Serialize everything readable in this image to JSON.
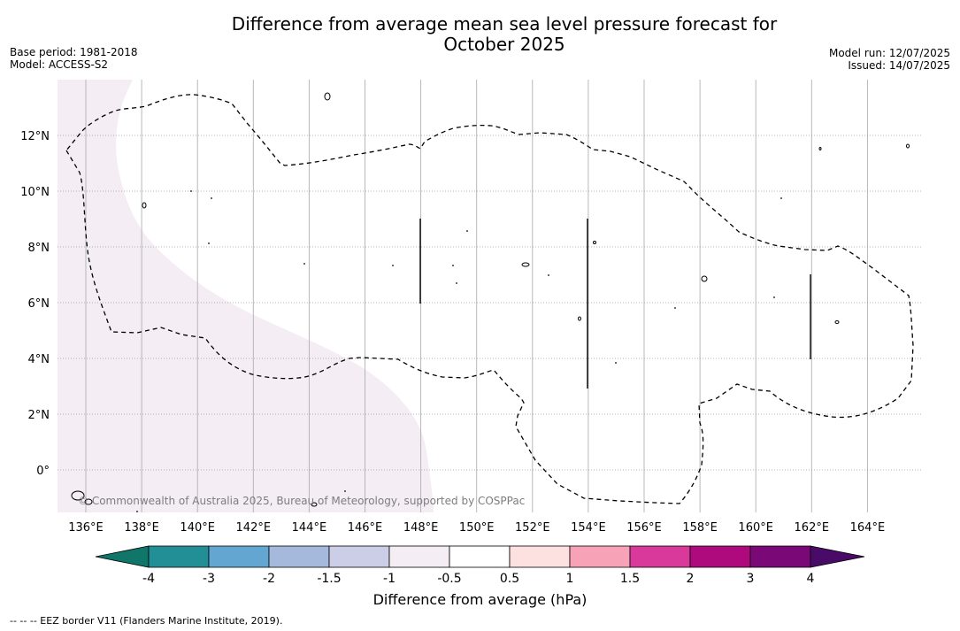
{
  "title": {
    "line1": "Difference from average mean sea level pressure forecast for",
    "line2": "October 2025"
  },
  "meta_left": {
    "base_period": "Base period: 1981-2018",
    "model": "Model: ACCESS-S2"
  },
  "meta_right": {
    "model_run": "Model run: 12/07/2025",
    "issued": "Issued: 14/07/2025"
  },
  "map": {
    "lon_labels": [
      "136°E",
      "138°E",
      "140°E",
      "142°E",
      "144°E",
      "146°E",
      "148°E",
      "150°E",
      "152°E",
      "154°E",
      "156°E",
      "158°E",
      "160°E",
      "162°E",
      "164°E"
    ],
    "lat_labels": [
      "12°N",
      "10°N",
      "8°N",
      "6°N",
      "4°N",
      "2°N",
      "0°"
    ],
    "copyright": "© Commonwealth of Australia 2025, Bureau of Meteorology, supported by COSPPac",
    "shaded_category": "-0.5 to -1 hPa",
    "shade_color": "#f4edf4",
    "eez_line_color": "#000000"
  },
  "colorbar": {
    "title": "Difference from average (hPa)",
    "tick_labels": [
      "-4",
      "-3",
      "-2",
      "-1.5",
      "-1",
      "-0.5",
      "0.5",
      "1",
      "1.5",
      "2",
      "3",
      "4"
    ],
    "under_color": "#10766a",
    "over_color": "#4a0a68",
    "segment_colors": [
      "#228f96",
      "#63a6d2",
      "#a4b9db",
      "#cccde6",
      "#f4edf4",
      "#ffffff",
      "#fde0e0",
      "#f8a2b8",
      "#d8399a",
      "#ae0a7d",
      "#7a0877"
    ]
  },
  "footer": {
    "legend_text": "--  --  -- EEZ border V11 (Flanders Marine Institute, 2019)."
  }
}
